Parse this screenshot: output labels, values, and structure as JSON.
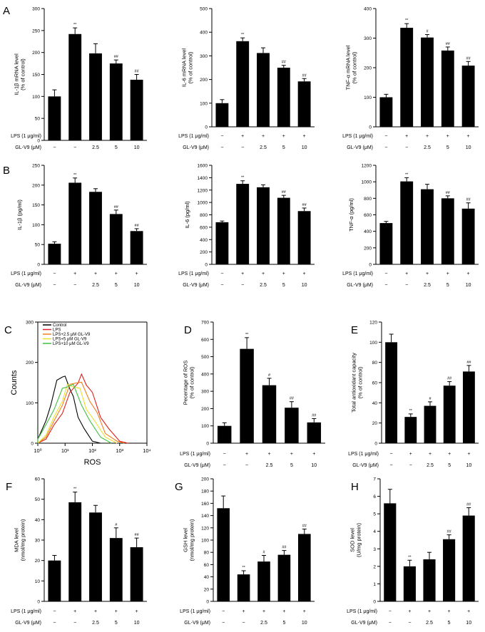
{
  "figure": {
    "treatment_rows": {
      "lps_label": "LPS (1 μg/ml)",
      "glv9_label": "GL-V9 (μM)",
      "lps": [
        "−",
        "+",
        "+",
        "+",
        "+"
      ],
      "glv9": [
        "−",
        "−",
        "2.5",
        "5",
        "10"
      ]
    }
  },
  "chart_data": [
    {
      "id": "A1",
      "panel_letter": "A",
      "type": "bar",
      "ylabel": [
        "IL-1β mRNA level",
        "(% of control)"
      ],
      "ylim": [
        0,
        300
      ],
      "yticks": [
        0,
        50,
        100,
        150,
        200,
        250,
        300
      ],
      "categories": [
        "Control",
        "LPS",
        "LPS+2.5",
        "LPS+5",
        "LPS+10"
      ],
      "values": [
        100,
        242,
        198,
        175,
        138
      ],
      "errors": [
        15,
        14,
        22,
        8,
        12
      ],
      "annotations": [
        "",
        "**",
        "",
        "##",
        "##"
      ]
    },
    {
      "id": "A2",
      "panel_letter": "",
      "type": "bar",
      "ylabel": [
        "IL-6 mRNA level",
        "(% of control)"
      ],
      "ylim": [
        0,
        500
      ],
      "yticks": [
        0,
        100,
        200,
        300,
        400,
        500
      ],
      "categories": [
        "Control",
        "LPS",
        "LPS+2.5",
        "LPS+5",
        "LPS+10"
      ],
      "values": [
        100,
        362,
        312,
        250,
        192
      ],
      "errors": [
        15,
        14,
        22,
        10,
        12
      ],
      "annotations": [
        "",
        "**",
        "",
        "##",
        "##"
      ]
    },
    {
      "id": "A3",
      "panel_letter": "",
      "type": "bar",
      "ylabel": [
        "TNF-α mRNA level",
        "(% of control)"
      ],
      "ylim": [
        0,
        400
      ],
      "yticks": [
        0,
        100,
        200,
        300,
        400
      ],
      "categories": [
        "Control",
        "LPS",
        "LPS+2.5",
        "LPS+5",
        "LPS+10"
      ],
      "values": [
        100,
        335,
        302,
        258,
        207
      ],
      "errors": [
        10,
        14,
        10,
        12,
        14
      ],
      "annotations": [
        "",
        "**",
        "#",
        "##",
        "##"
      ]
    },
    {
      "id": "B1",
      "panel_letter": "B",
      "type": "bar",
      "ylabel": [
        "IL-1β (pg/ml)"
      ],
      "ylim": [
        0,
        250
      ],
      "yticks": [
        0,
        50,
        100,
        150,
        200,
        250
      ],
      "categories": [
        "Control",
        "LPS",
        "LPS+2.5",
        "LPS+5",
        "LPS+10"
      ],
      "values": [
        52,
        206,
        183,
        127,
        84
      ],
      "errors": [
        5,
        12,
        8,
        10,
        6
      ],
      "annotations": [
        "",
        "**",
        "",
        "##",
        "##"
      ]
    },
    {
      "id": "B2",
      "panel_letter": "",
      "type": "bar",
      "ylabel": [
        "IL-6 (pg/ml)"
      ],
      "ylim": [
        0,
        1600
      ],
      "yticks": [
        0,
        200,
        400,
        600,
        800,
        1000,
        1200,
        1400,
        1600
      ],
      "categories": [
        "Control",
        "LPS",
        "LPS+2.5",
        "LPS+5",
        "LPS+10"
      ],
      "values": [
        680,
        1300,
        1245,
        1075,
        860
      ],
      "errors": [
        20,
        50,
        40,
        40,
        50
      ],
      "annotations": [
        "",
        "**",
        "",
        "##",
        "##"
      ]
    },
    {
      "id": "B3",
      "panel_letter": "",
      "type": "bar",
      "ylabel": [
        "TNF-α (pg/ml)"
      ],
      "ylim": [
        0,
        1200
      ],
      "yticks": [
        0,
        200,
        400,
        600,
        800,
        1000,
        1200
      ],
      "categories": [
        "Control",
        "LPS",
        "LPS+2.5",
        "LPS+5",
        "LPS+10"
      ],
      "values": [
        500,
        1005,
        910,
        800,
        675
      ],
      "errors": [
        20,
        45,
        60,
        30,
        70
      ],
      "annotations": [
        "",
        "**",
        "",
        "##",
        "##"
      ]
    },
    {
      "id": "C",
      "panel_letter": "C",
      "type": "line",
      "subtype": "flow-cytometry-histogram",
      "xlabel": "ROS",
      "ylabel": "Counts",
      "x_scale": "log",
      "x_ticks": [
        "10⁰",
        "10¹",
        "10²",
        "10³",
        "10⁴"
      ],
      "x_tick_values": [
        1,
        10,
        100,
        1000,
        10000
      ],
      "ylim": [
        0,
        300
      ],
      "yticks": [
        0,
        100,
        200,
        300
      ],
      "series": [
        {
          "name": "Control",
          "color": "#000000",
          "x": [
            0.5,
            1,
            2,
            3,
            5,
            8,
            10,
            15,
            20,
            30,
            50,
            100,
            200
          ],
          "values": [
            0,
            10,
            50,
            100,
            150,
            170,
            160,
            140,
            110,
            70,
            30,
            5,
            0
          ]
        },
        {
          "name": "LPS",
          "color": "#e02020",
          "x": [
            1,
            2,
            4,
            8,
            15,
            30,
            40,
            60,
            100,
            200,
            400,
            1000,
            2000
          ],
          "values": [
            0,
            10,
            40,
            80,
            120,
            155,
            165,
            150,
            120,
            70,
            30,
            5,
            0
          ]
        },
        {
          "name": "LPS+2.5 μM GL-V9",
          "color": "#f08020",
          "x": [
            1,
            2,
            4,
            8,
            15,
            25,
            40,
            80,
            150,
            300,
            800,
            1500
          ],
          "values": [
            0,
            15,
            50,
            100,
            140,
            155,
            145,
            110,
            70,
            30,
            5,
            0
          ]
        },
        {
          "name": "LPS+5 μM GL-V9",
          "color": "#e8e030",
          "x": [
            0.8,
            2,
            4,
            8,
            12,
            20,
            35,
            60,
            120,
            300,
            800
          ],
          "values": [
            0,
            20,
            60,
            110,
            140,
            145,
            130,
            90,
            50,
            15,
            0
          ]
        },
        {
          "name": "LPS+10 μM GL-V9",
          "color": "#40c040",
          "x": [
            0.6,
            1,
            2,
            4,
            8,
            12,
            20,
            40,
            80,
            200,
            500
          ],
          "values": [
            0,
            10,
            40,
            90,
            130,
            145,
            140,
            100,
            50,
            15,
            0
          ]
        }
      ]
    },
    {
      "id": "D",
      "panel_letter": "D",
      "type": "bar",
      "ylabel": [
        "Pecentage of ROS",
        "(% of control)"
      ],
      "ylim": [
        0,
        700
      ],
      "yticks": [
        0,
        100,
        200,
        300,
        400,
        500,
        600,
        700
      ],
      "categories": [
        "Control",
        "LPS",
        "LPS+2.5",
        "LPS+5",
        "LPS+10"
      ],
      "values": [
        100,
        545,
        335,
        205,
        120
      ],
      "errors": [
        18,
        65,
        40,
        35,
        22
      ],
      "annotations": [
        "",
        "**",
        "#",
        "##",
        "##"
      ]
    },
    {
      "id": "E",
      "panel_letter": "E",
      "type": "bar",
      "ylabel": [
        "Total antioxidant capacity",
        "(% of control)"
      ],
      "ylim": [
        0,
        120
      ],
      "yticks": [
        0,
        20,
        40,
        60,
        80,
        100,
        120
      ],
      "categories": [
        "Control",
        "LPS",
        "LPS+2.5",
        "LPS+5",
        "LPS+10"
      ],
      "values": [
        100,
        26,
        37,
        57,
        71
      ],
      "errors": [
        8,
        3,
        4,
        4,
        6
      ],
      "annotations": [
        "",
        "**",
        "#",
        "##",
        "##"
      ]
    },
    {
      "id": "F",
      "panel_letter": "F",
      "type": "bar",
      "ylabel": [
        "MDA level",
        "(nmol/mg protein)"
      ],
      "ylim": [
        0,
        60
      ],
      "yticks": [
        0,
        10,
        20,
        30,
        40,
        50,
        60
      ],
      "categories": [
        "Control",
        "LPS",
        "LPS+2.5",
        "LPS+5",
        "LPS+10"
      ],
      "values": [
        20,
        48.5,
        43.5,
        31,
        26.5
      ],
      "errors": [
        2.5,
        5,
        3.5,
        5,
        4.5
      ],
      "annotations": [
        "",
        "**",
        "",
        "#",
        "##"
      ]
    },
    {
      "id": "G",
      "panel_letter": "G",
      "type": "bar",
      "ylabel": [
        "GSH level",
        "(nmol/mg protein)"
      ],
      "ylim": [
        0,
        200
      ],
      "yticks": [
        0,
        20,
        40,
        60,
        80,
        100,
        120,
        140,
        160,
        180,
        200
      ],
      "categories": [
        "Control",
        "LPS",
        "LPS+2.5",
        "LPS+5",
        "LPS+10"
      ],
      "values": [
        152,
        44,
        65,
        76,
        110
      ],
      "errors": [
        20,
        6,
        10,
        7,
        8
      ],
      "annotations": [
        "",
        "**",
        "#",
        "##",
        "##"
      ]
    },
    {
      "id": "H",
      "panel_letter": "H",
      "type": "bar",
      "ylabel": [
        "SOD level",
        "(U/mg protein)"
      ],
      "ylim": [
        0,
        7
      ],
      "yticks": [
        0,
        1,
        2,
        3,
        4,
        5,
        6,
        7
      ],
      "categories": [
        "Control",
        "LPS",
        "LPS+2.5",
        "LPS+5",
        "LPS+10"
      ],
      "values": [
        5.6,
        2.0,
        2.4,
        3.55,
        4.9
      ],
      "errors": [
        0.8,
        0.35,
        0.4,
        0.25,
        0.45
      ],
      "annotations": [
        "",
        "**",
        "",
        "##",
        "##"
      ]
    }
  ]
}
